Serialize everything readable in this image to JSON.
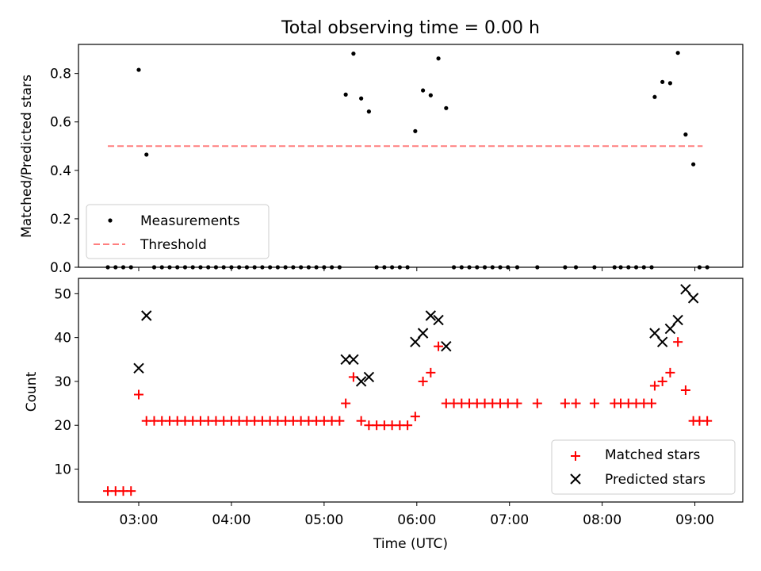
{
  "chart_data": [
    {
      "type": "scatter",
      "title": "Total observing time = 0.00 h",
      "ylabel": "Matched/Predicted stars",
      "ylim": [
        0,
        0.92
      ],
      "yticks": [
        0.0,
        0.2,
        0.4,
        0.6,
        0.8
      ],
      "ytick_labels": [
        "0.0",
        "0.2",
        "0.4",
        "0.6",
        "0.8"
      ],
      "legend": {
        "placement": "lower-left",
        "entries": [
          "Measurements",
          "Threshold"
        ]
      },
      "threshold": {
        "name": "Threshold",
        "y": 0.5,
        "x_range": [
          "02:40",
          "09:05"
        ],
        "color": "#ff7f7f"
      },
      "series": [
        {
          "name": "Measurements",
          "color": "#000000",
          "x": [
            "02:40",
            "02:45",
            "02:50",
            "02:55",
            "03:00",
            "03:05",
            "03:10",
            "03:15",
            "03:20",
            "03:25",
            "03:30",
            "03:35",
            "03:40",
            "03:45",
            "03:50",
            "03:55",
            "04:00",
            "04:05",
            "04:10",
            "04:15",
            "04:20",
            "04:25",
            "04:30",
            "04:35",
            "04:40",
            "04:45",
            "04:50",
            "04:55",
            "05:00",
            "05:05",
            "05:10",
            "05:14",
            "05:19",
            "05:24",
            "05:29",
            "05:34",
            "05:39",
            "05:44",
            "05:49",
            "05:54",
            "05:59",
            "06:04",
            "06:09",
            "06:14",
            "06:19",
            "06:24",
            "06:29",
            "06:34",
            "06:39",
            "06:44",
            "06:49",
            "06:54",
            "06:59",
            "07:05",
            "07:18",
            "07:36",
            "07:43",
            "07:55",
            "08:08",
            "08:12",
            "08:17",
            "08:22",
            "08:27",
            "08:32",
            "08:34",
            "08:39",
            "08:44",
            "08:49",
            "08:54",
            "08:59",
            "09:03",
            "09:08"
          ],
          "y": [
            0,
            0,
            0,
            0,
            0.815,
            0.465,
            0,
            0,
            0,
            0,
            0,
            0,
            0,
            0,
            0,
            0,
            0,
            0,
            0,
            0,
            0,
            0,
            0,
            0,
            0,
            0,
            0,
            0,
            0,
            0,
            0,
            0.713,
            0.882,
            0.697,
            0.643,
            0,
            0,
            0,
            0,
            0,
            0.562,
            0.73,
            0.71,
            0.862,
            0.657,
            0,
            0,
            0,
            0,
            0,
            0,
            0,
            0,
            0,
            0,
            0,
            0,
            0,
            0,
            0,
            0,
            0,
            0,
            0,
            0.703,
            0.765,
            0.76,
            0.885,
            0.548,
            0.425,
            0,
            0
          ]
        }
      ]
    },
    {
      "type": "scatter",
      "xlabel": "Time (UTC)",
      "ylabel": "Count",
      "ylim": [
        2.5,
        53.5
      ],
      "yticks": [
        10,
        20,
        30,
        40,
        50
      ],
      "ytick_labels": [
        "10",
        "20",
        "30",
        "40",
        "50"
      ],
      "xticks": [
        "03:00",
        "04:00",
        "05:00",
        "06:00",
        "07:00",
        "08:00",
        "09:00"
      ],
      "xlim": [
        "02:21",
        "09:31"
      ],
      "legend": {
        "placement": "lower-right",
        "entries": [
          "Matched stars",
          "Predicted stars"
        ]
      },
      "series": [
        {
          "name": "Matched stars",
          "marker": "plus",
          "color": "#ff0000",
          "x": [
            "02:40",
            "02:45",
            "02:50",
            "02:55",
            "03:00",
            "03:05",
            "03:10",
            "03:15",
            "03:20",
            "03:25",
            "03:30",
            "03:35",
            "03:40",
            "03:45",
            "03:50",
            "03:55",
            "04:00",
            "04:05",
            "04:10",
            "04:15",
            "04:20",
            "04:25",
            "04:30",
            "04:35",
            "04:40",
            "04:45",
            "04:50",
            "04:55",
            "05:00",
            "05:05",
            "05:10",
            "05:14",
            "05:19",
            "05:24",
            "05:29",
            "05:34",
            "05:39",
            "05:44",
            "05:49",
            "05:54",
            "05:59",
            "06:04",
            "06:09",
            "06:14",
            "06:19",
            "06:24",
            "06:29",
            "06:34",
            "06:39",
            "06:44",
            "06:49",
            "06:54",
            "06:59",
            "07:05",
            "07:18",
            "07:36",
            "07:43",
            "07:55",
            "08:08",
            "08:12",
            "08:17",
            "08:22",
            "08:27",
            "08:32",
            "08:34",
            "08:39",
            "08:44",
            "08:49",
            "08:54",
            "08:59",
            "09:03",
            "09:08"
          ],
          "y": [
            5,
            5,
            5,
            5,
            27,
            21,
            21,
            21,
            21,
            21,
            21,
            21,
            21,
            21,
            21,
            21,
            21,
            21,
            21,
            21,
            21,
            21,
            21,
            21,
            21,
            21,
            21,
            21,
            21,
            21,
            21,
            25,
            31,
            21,
            20,
            20,
            20,
            20,
            20,
            20,
            22,
            30,
            32,
            38,
            25,
            25,
            25,
            25,
            25,
            25,
            25,
            25,
            25,
            25,
            25,
            25,
            25,
            25,
            25,
            25,
            25,
            25,
            25,
            25,
            29,
            30,
            32,
            39,
            28,
            21,
            21,
            21
          ]
        },
        {
          "name": "Predicted stars",
          "marker": "x",
          "color": "#000000",
          "x": [
            "03:00",
            "03:05",
            "05:14",
            "05:19",
            "05:24",
            "05:29",
            "05:59",
            "06:04",
            "06:09",
            "06:14",
            "06:19",
            "08:34",
            "08:39",
            "08:44",
            "08:49",
            "08:54",
            "08:59"
          ],
          "y": [
            33,
            45,
            35,
            35,
            30,
            31,
            39,
            41,
            45,
            44,
            38,
            41,
            39,
            42,
            44,
            51,
            49
          ]
        }
      ]
    }
  ]
}
